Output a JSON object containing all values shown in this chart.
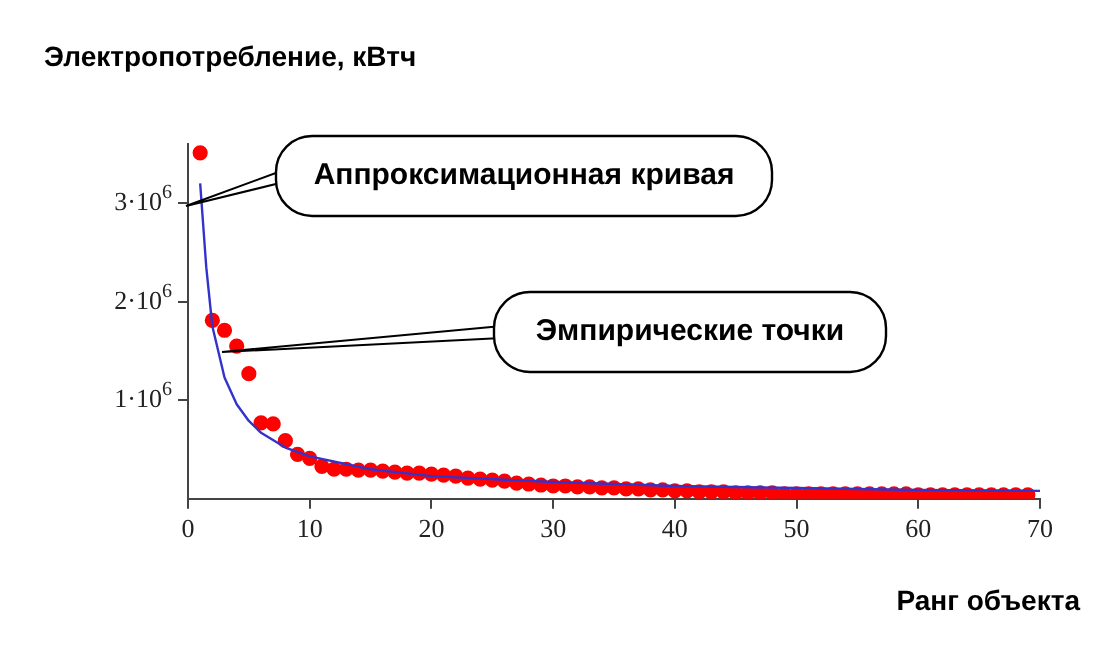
{
  "chart_data": {
    "type": "scatter",
    "ylabel": "Электропотребление, кВтч",
    "xlabel": "Ранг объекта",
    "xlim": [
      0,
      70
    ],
    "xticks": [
      0,
      10,
      20,
      30,
      40,
      50,
      60,
      70
    ],
    "ylim": [
      0,
      3600000
    ],
    "yticks": [
      {
        "value": 1000000,
        "label": "1·10$^{6}$"
      },
      {
        "value": 2000000,
        "label": "2·10$^{6}$"
      },
      {
        "value": 3000000,
        "label": "3·10$^{6}$"
      }
    ],
    "grid": false,
    "legend": false,
    "series": [
      {
        "type": "line",
        "color": "#3333cc",
        "marker": "none",
        "line_style": "solid",
        "x": [
          1,
          1.5,
          2,
          3,
          4,
          5,
          6,
          8,
          10,
          15,
          20,
          30,
          40,
          50,
          60,
          70
        ],
        "values": [
          3200000,
          2350000,
          1750000,
          1230000,
          960000,
          790000,
          670000,
          520000,
          430000,
          300000,
          230000,
          170000,
          130000,
          110000,
          90000,
          80000
        ]
      },
      {
        "type": "scatter",
        "color": "#ff0000",
        "marker": "circle",
        "x": [
          1,
          2,
          3,
          4,
          5,
          6,
          7,
          8,
          9,
          10,
          11,
          12,
          13,
          14,
          15,
          16,
          17,
          18,
          19,
          20,
          21,
          22,
          23,
          24,
          25,
          26,
          27,
          28,
          29,
          30,
          31,
          32,
          33,
          34,
          35,
          36,
          37,
          38,
          39,
          40,
          41,
          42,
          43,
          44,
          45,
          46,
          47,
          48,
          49,
          50,
          51,
          52,
          53,
          54,
          55,
          56,
          57,
          58,
          59,
          60,
          61,
          62,
          63,
          64,
          65,
          66,
          67,
          68,
          69
        ],
        "values": [
          3510000,
          1810000,
          1710000,
          1550000,
          1270000,
          770000,
          760000,
          590000,
          450000,
          410000,
          330000,
          300000,
          300000,
          290000,
          290000,
          280000,
          270000,
          260000,
          260000,
          250000,
          240000,
          230000,
          210000,
          200000,
          190000,
          180000,
          160000,
          150000,
          140000,
          130000,
          130000,
          120000,
          120000,
          110000,
          110000,
          100000,
          100000,
          90000,
          90000,
          80000,
          80000,
          70000,
          70000,
          70000,
          60000,
          60000,
          60000,
          60000,
          50000,
          50000,
          50000,
          50000,
          50000,
          50000,
          50000,
          50000,
          50000,
          50000,
          50000,
          40000,
          40000,
          40000,
          40000,
          40000,
          40000,
          40000,
          40000,
          40000,
          40000
        ]
      }
    ],
    "annotations": [
      "Аппроксимационная кривая",
      "Эмпирические точки"
    ]
  }
}
